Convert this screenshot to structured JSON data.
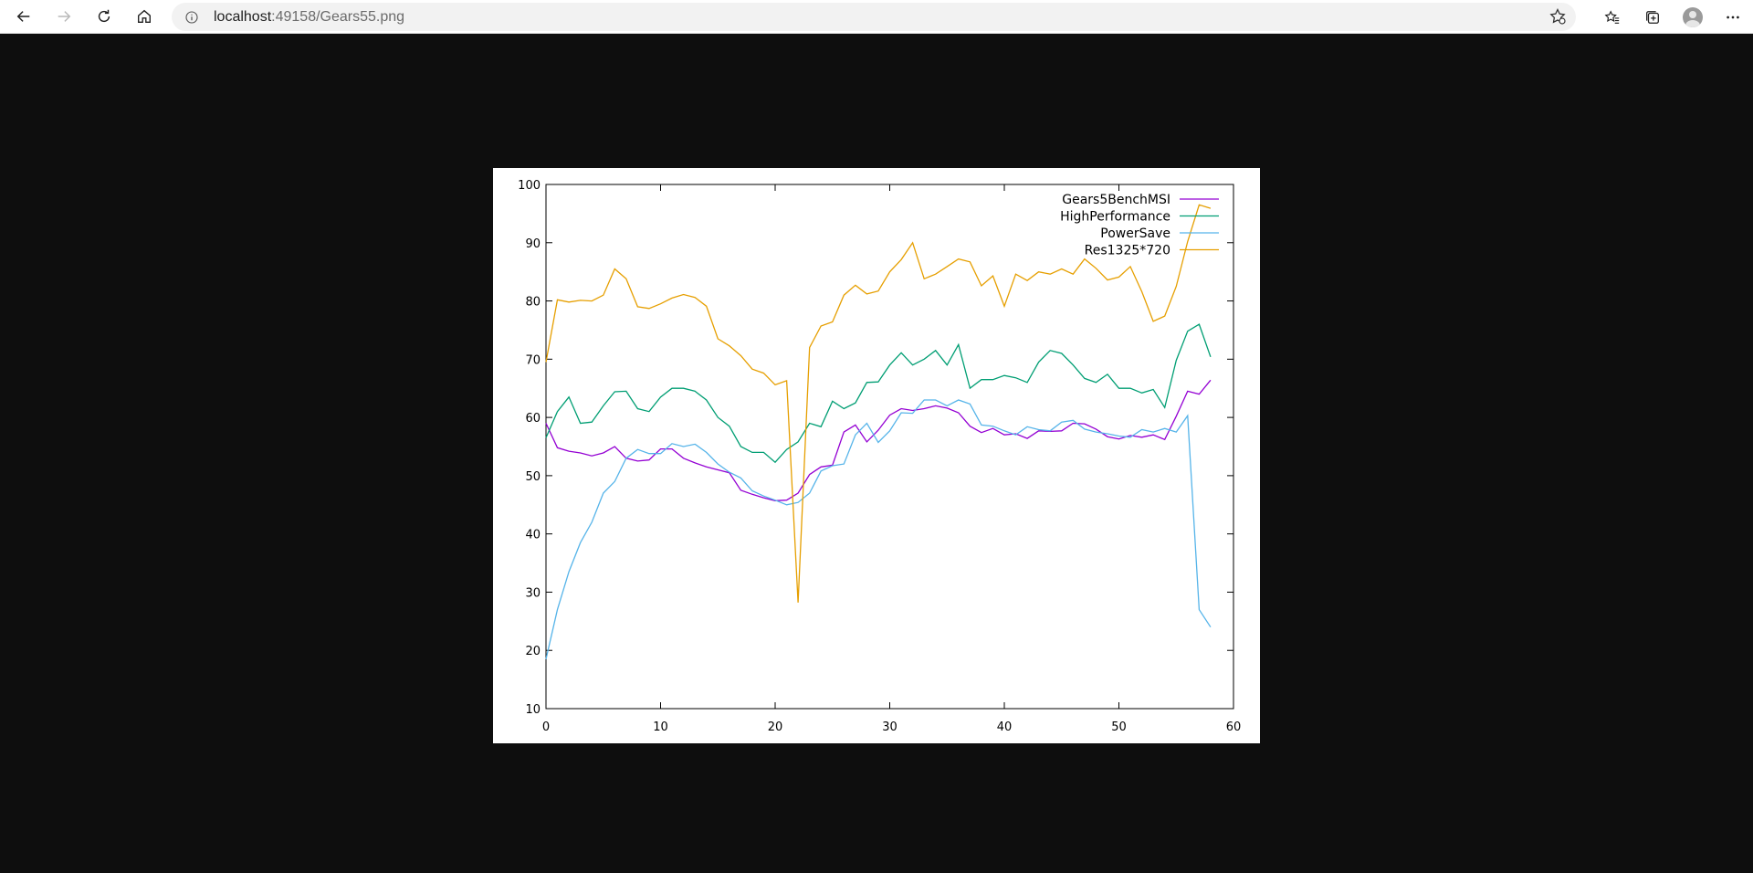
{
  "browser": {
    "url_host": "localhost",
    "url_rest": ":49158/Gears55.png",
    "icons": [
      "back-icon",
      "forward-icon",
      "refresh-icon",
      "home-icon",
      "info-icon",
      "favorite-add-icon",
      "favorites-icon",
      "collections-icon",
      "profile-icon",
      "more-icon"
    ]
  },
  "chart_data": {
    "type": "line",
    "title": "",
    "xlabel": "",
    "ylabel": "",
    "xlim": [
      0,
      60
    ],
    "ylim": [
      10,
      100
    ],
    "xticks": [
      "0",
      "10",
      "20",
      "30",
      "40",
      "50",
      "60"
    ],
    "yticks": [
      "10",
      "20",
      "30",
      "40",
      "50",
      "60",
      "70",
      "80",
      "90",
      "100"
    ],
    "grid": false,
    "legend_position": "top-right",
    "series": [
      {
        "name": "Gears5BenchMSI",
        "color": "#9400d3",
        "x": [
          0,
          1,
          2,
          3,
          4,
          5,
          6,
          7,
          8,
          9,
          10,
          11,
          12,
          13,
          14,
          15,
          16,
          17,
          18,
          19,
          20,
          21,
          22,
          23,
          24,
          25,
          26,
          27,
          28,
          29,
          30,
          31,
          32,
          33,
          34,
          35,
          36,
          37,
          38,
          39,
          40,
          41,
          42,
          43,
          44,
          45,
          46,
          47,
          48,
          49,
          50,
          51,
          52,
          53,
          54,
          55,
          56,
          57,
          58
        ],
        "values": [
          59,
          54.8,
          54.2,
          53.9,
          53.4,
          53.9,
          55.0,
          53.0,
          52.5,
          52.7,
          54.6,
          54.6,
          53.0,
          52.2,
          51.5,
          51.0,
          50.5,
          47.5,
          46.8,
          46.2,
          45.7,
          45.8,
          47.0,
          50.2,
          51.5,
          51.8,
          57.5,
          58.7,
          55.8,
          57.8,
          60.4,
          61.5,
          61.2,
          61.5,
          62.0,
          61.6,
          60.8,
          58.5,
          57.4,
          58.1,
          57.0,
          57.2,
          56.4,
          57.7,
          57.6,
          57.7,
          59.0,
          58.9,
          58.0,
          56.7,
          56.3,
          56.9,
          56.6,
          57.0,
          56.2,
          60.2,
          64.5,
          64.0,
          66.4
        ]
      },
      {
        "name": "HighPerformance",
        "color": "#009e73",
        "x": [
          0,
          1,
          2,
          3,
          4,
          5,
          6,
          7,
          8,
          9,
          10,
          11,
          12,
          13,
          14,
          15,
          16,
          17,
          18,
          19,
          20,
          21,
          22,
          23,
          24,
          25,
          26,
          27,
          28,
          29,
          30,
          31,
          32,
          33,
          34,
          35,
          36,
          37,
          38,
          39,
          40,
          41,
          42,
          43,
          44,
          45,
          46,
          47,
          48,
          49,
          50,
          51,
          52,
          53,
          54,
          55,
          56,
          57,
          58
        ],
        "values": [
          56.5,
          61.0,
          63.5,
          59.0,
          59.2,
          62.0,
          64.4,
          64.5,
          61.5,
          61.0,
          63.5,
          65.0,
          65.0,
          64.5,
          63.0,
          60.0,
          58.5,
          55.0,
          54.0,
          54.0,
          52.3,
          54.5,
          55.8,
          59.0,
          58.4,
          62.8,
          61.5,
          62.5,
          66.0,
          66.1,
          69.0,
          71.1,
          69.0,
          70.0,
          71.5,
          69.0,
          72.5,
          65.0,
          66.5,
          66.5,
          67.2,
          66.8,
          66.0,
          69.5,
          71.5,
          71.0,
          69.0,
          66.7,
          66.0,
          67.4,
          65.0,
          65.0,
          64.2,
          64.8,
          61.7,
          69.8,
          74.8,
          76.0,
          70.4
        ]
      },
      {
        "name": "PowerSave",
        "color": "#56b4e9",
        "x": [
          0,
          1,
          2,
          3,
          4,
          5,
          6,
          7,
          8,
          9,
          10,
          11,
          12,
          13,
          14,
          15,
          16,
          17,
          18,
          19,
          20,
          21,
          22,
          23,
          24,
          25,
          26,
          27,
          28,
          29,
          30,
          31,
          32,
          33,
          34,
          35,
          36,
          37,
          38,
          39,
          40,
          41,
          42,
          43,
          44,
          45,
          46,
          47,
          48,
          49,
          50,
          51,
          52,
          53,
          54,
          55,
          56,
          57,
          58
        ],
        "values": [
          18.5,
          27,
          33.5,
          38.5,
          42,
          47,
          49,
          53,
          54.5,
          53.8,
          53.8,
          55.5,
          55,
          55.4,
          54,
          52,
          50.6,
          49.6,
          47.4,
          46.5,
          45.8,
          45,
          45.4,
          47,
          50.8,
          51.7,
          52.0,
          57.0,
          59.0,
          55.7,
          57.7,
          60.8,
          60.7,
          63.0,
          63.0,
          62.0,
          63.0,
          62.3,
          58.7,
          58.5,
          57.7,
          57.0,
          58.4,
          57.9,
          57.7,
          59.2,
          59.5,
          58.0,
          57.5,
          57.2,
          56.8,
          56.6,
          57.9,
          57.5,
          58.1,
          57.5,
          60.3,
          27.0,
          24.0
        ]
      },
      {
        "name": "Res1325*720",
        "color": "#e69f00",
        "x": [
          0,
          1,
          2,
          3,
          4,
          5,
          6,
          7,
          8,
          9,
          10,
          11,
          12,
          13,
          14,
          15,
          16,
          17,
          18,
          19,
          20,
          21,
          22,
          23,
          24,
          25,
          26,
          27,
          28,
          29,
          30,
          31,
          32,
          33,
          34,
          35,
          36,
          37,
          38,
          39,
          40,
          41,
          42,
          43,
          44,
          45,
          46,
          47,
          48,
          49,
          50,
          51,
          52,
          53,
          54,
          55,
          56,
          57,
          58
        ],
        "values": [
          69.5,
          80.2,
          79.8,
          80.1,
          80.0,
          81.0,
          85.5,
          83.8,
          79.0,
          78.7,
          79.5,
          80.5,
          81.1,
          80.6,
          79.1,
          73.5,
          72.3,
          70.6,
          68.3,
          67.6,
          65.6,
          66.3,
          28.2,
          72.0,
          75.7,
          76.4,
          81.0,
          82.7,
          81.2,
          81.7,
          85.0,
          87.1,
          90.0,
          83.8,
          84.6,
          85.9,
          87.2,
          86.7,
          82.6,
          84.3,
          79.1,
          84.6,
          83.5,
          85.0,
          84.6,
          85.5,
          84.6,
          87.2,
          85.6,
          83.6,
          84.1,
          85.9,
          81.6,
          76.5,
          77.4,
          82.5,
          90.2,
          96.5,
          95.9
        ]
      }
    ]
  }
}
